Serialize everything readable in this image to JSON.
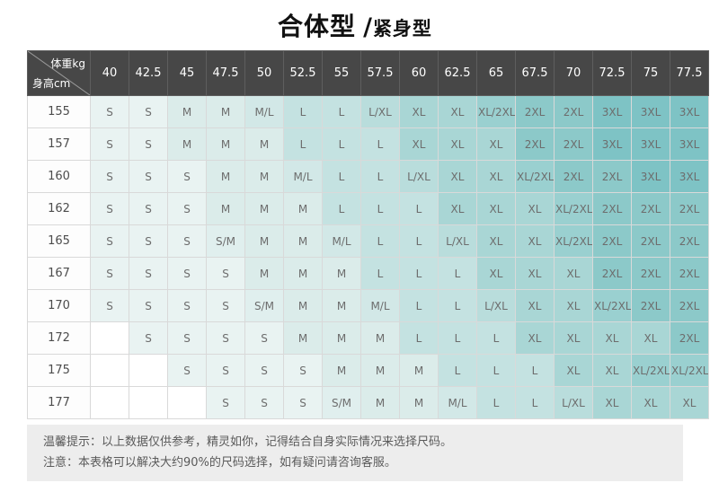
{
  "title": {
    "primary": "合体型",
    "separator": "/",
    "secondary": "紧身型"
  },
  "chart_data": {
    "type": "table",
    "title": "合体型 /紧身型",
    "corner_top_right": "体重kg",
    "corner_bottom_left": "身高cm",
    "weight_columns_kg": [
      "40",
      "42.5",
      "45",
      "47.5",
      "50",
      "52.5",
      "55",
      "57.5",
      "60",
      "62.5",
      "65",
      "67.5",
      "70",
      "72.5",
      "75",
      "77.5"
    ],
    "height_rows_cm": [
      {
        "height": "155",
        "sizes": [
          "S",
          "S",
          "M",
          "M",
          "M/L",
          "L",
          "L",
          "L/XL",
          "XL",
          "XL",
          "XL/2XL",
          "2XL",
          "2XL",
          "3XL",
          "3XL",
          "3XL"
        ]
      },
      {
        "height": "157",
        "sizes": [
          "S",
          "S",
          "M",
          "M",
          "M",
          "L",
          "L",
          "L",
          "XL",
          "XL",
          "XL",
          "2XL",
          "2XL",
          "3XL",
          "3XL",
          "3XL"
        ]
      },
      {
        "height": "160",
        "sizes": [
          "S",
          "S",
          "S",
          "M",
          "M",
          "M/L",
          "L",
          "L",
          "L/XL",
          "XL",
          "XL",
          "XL/2XL",
          "2XL",
          "2XL",
          "3XL",
          "3XL"
        ]
      },
      {
        "height": "162",
        "sizes": [
          "S",
          "S",
          "S",
          "M",
          "M",
          "M",
          "L",
          "L",
          "L",
          "XL",
          "XL",
          "XL",
          "XL/2XL",
          "2XL",
          "2XL",
          "2XL"
        ]
      },
      {
        "height": "165",
        "sizes": [
          "S",
          "S",
          "S",
          "S/M",
          "M",
          "M",
          "M/L",
          "L",
          "L",
          "L/XL",
          "XL",
          "XL",
          "XL/2XL",
          "2XL",
          "2XL",
          "2XL"
        ]
      },
      {
        "height": "167",
        "sizes": [
          "S",
          "S",
          "S",
          "S",
          "M",
          "M",
          "M",
          "L",
          "L",
          "L",
          "XL",
          "XL",
          "XL",
          "2XL",
          "2XL",
          "2XL"
        ]
      },
      {
        "height": "170",
        "sizes": [
          "S",
          "S",
          "S",
          "S",
          "S/M",
          "M",
          "M",
          "M/L",
          "L",
          "L",
          "L/XL",
          "XL",
          "XL",
          "XL/2XL",
          "2XL",
          "2XL"
        ]
      },
      {
        "height": "172",
        "sizes": [
          "",
          "S",
          "S",
          "S",
          "S",
          "M",
          "M",
          "M",
          "L",
          "L",
          "L",
          "XL",
          "XL",
          "XL",
          "XL",
          "2XL"
        ]
      },
      {
        "height": "175",
        "sizes": [
          "",
          "",
          "S",
          "S",
          "S",
          "S",
          "M",
          "M",
          "M",
          "L",
          "L",
          "L",
          "XL",
          "XL",
          "XL/2XL",
          "XL/2XL"
        ]
      },
      {
        "height": "177",
        "sizes": [
          "",
          "",
          "",
          "S",
          "S",
          "S",
          "S/M",
          "M",
          "M",
          "M/L",
          "L",
          "L",
          "L/XL",
          "XL",
          "XL",
          "XL"
        ]
      }
    ],
    "notes": [
      "温馨提示：以上数据仅供参考，精灵如你，记得结合自身实际情况来选择尺码。",
      "注意：本表格可以解决大约90%的尺码选择，如有疑问请咨询客服。"
    ]
  },
  "colors": {
    "header_bg": "#474747",
    "header_text": "#ffffff",
    "footer_bg": "#ededed",
    "footer_text": "#5a5a5a",
    "empty_fill": "#ffffff",
    "size_fill": {
      "S": "#e9f3f2",
      "S/M": "#e0efee",
      "M": "#dbecea",
      "M/L": "#d2e8e7",
      "L": "#c4e2e1",
      "L/XL": "#b9dddc",
      "XL": "#a9d6d5",
      "XL/2XL": "#9ad0d0",
      "2XL": "#8cc9c9",
      "3XL": "#7ec3c5"
    }
  },
  "footer": {
    "line1": "温馨提示：以上数据仅供参考，精灵如你，记得结合自身实际情况来选择尺码。",
    "line2": "注意：本表格可以解决大约90%的尺码选择，如有疑问请咨询客服。"
  }
}
